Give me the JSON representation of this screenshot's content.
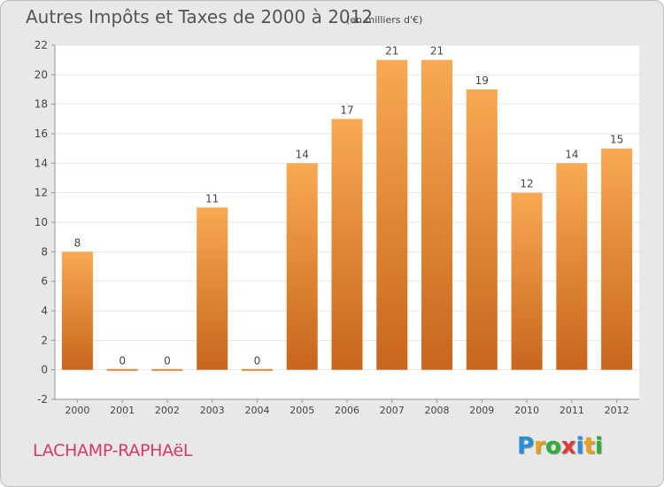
{
  "title": "Autres Impôts et Taxes de 2000 à 2012",
  "unit_note": "(en milliers d'€)",
  "commune": "LACHAMP-RAPHAëL",
  "brand": {
    "name": "Proxiti",
    "letters": [
      {
        "ch": "P",
        "color": "#2a8fd8"
      },
      {
        "ch": "r",
        "color": "#e8a21a"
      },
      {
        "ch": "o",
        "color": "#2fae3c"
      },
      {
        "ch": "x",
        "color": "#e23a3a"
      },
      {
        "ch": "i",
        "color": "#2a8fd8"
      },
      {
        "ch": "t",
        "color": "#e8a21a"
      },
      {
        "ch": "i",
        "color": "#2fae3c"
      }
    ]
  },
  "colors": {
    "bar_top": "#f8a952",
    "bar_bottom": "#c8661c",
    "plot_bg": "#ffffff",
    "grid": "#e6e6e6",
    "label": "#444444"
  },
  "chart_data": {
    "type": "bar",
    "categories": [
      "2000",
      "2001",
      "2002",
      "2003",
      "2004",
      "2005",
      "2006",
      "2007",
      "2008",
      "2009",
      "2010",
      "2011",
      "2012"
    ],
    "values": [
      8,
      0,
      0,
      11,
      0,
      14,
      17,
      21,
      21,
      19,
      12,
      14,
      15
    ],
    "data_labels": [
      "8",
      "0",
      "0",
      "11",
      "0",
      "14",
      "17",
      "21",
      "21",
      "19",
      "12",
      "14",
      "15"
    ],
    "ylim": [
      -2,
      22
    ],
    "yticks": [
      -2,
      0,
      2,
      4,
      6,
      8,
      10,
      12,
      14,
      16,
      18,
      20,
      22
    ],
    "grid": true,
    "xlabel": "",
    "ylabel": ""
  }
}
